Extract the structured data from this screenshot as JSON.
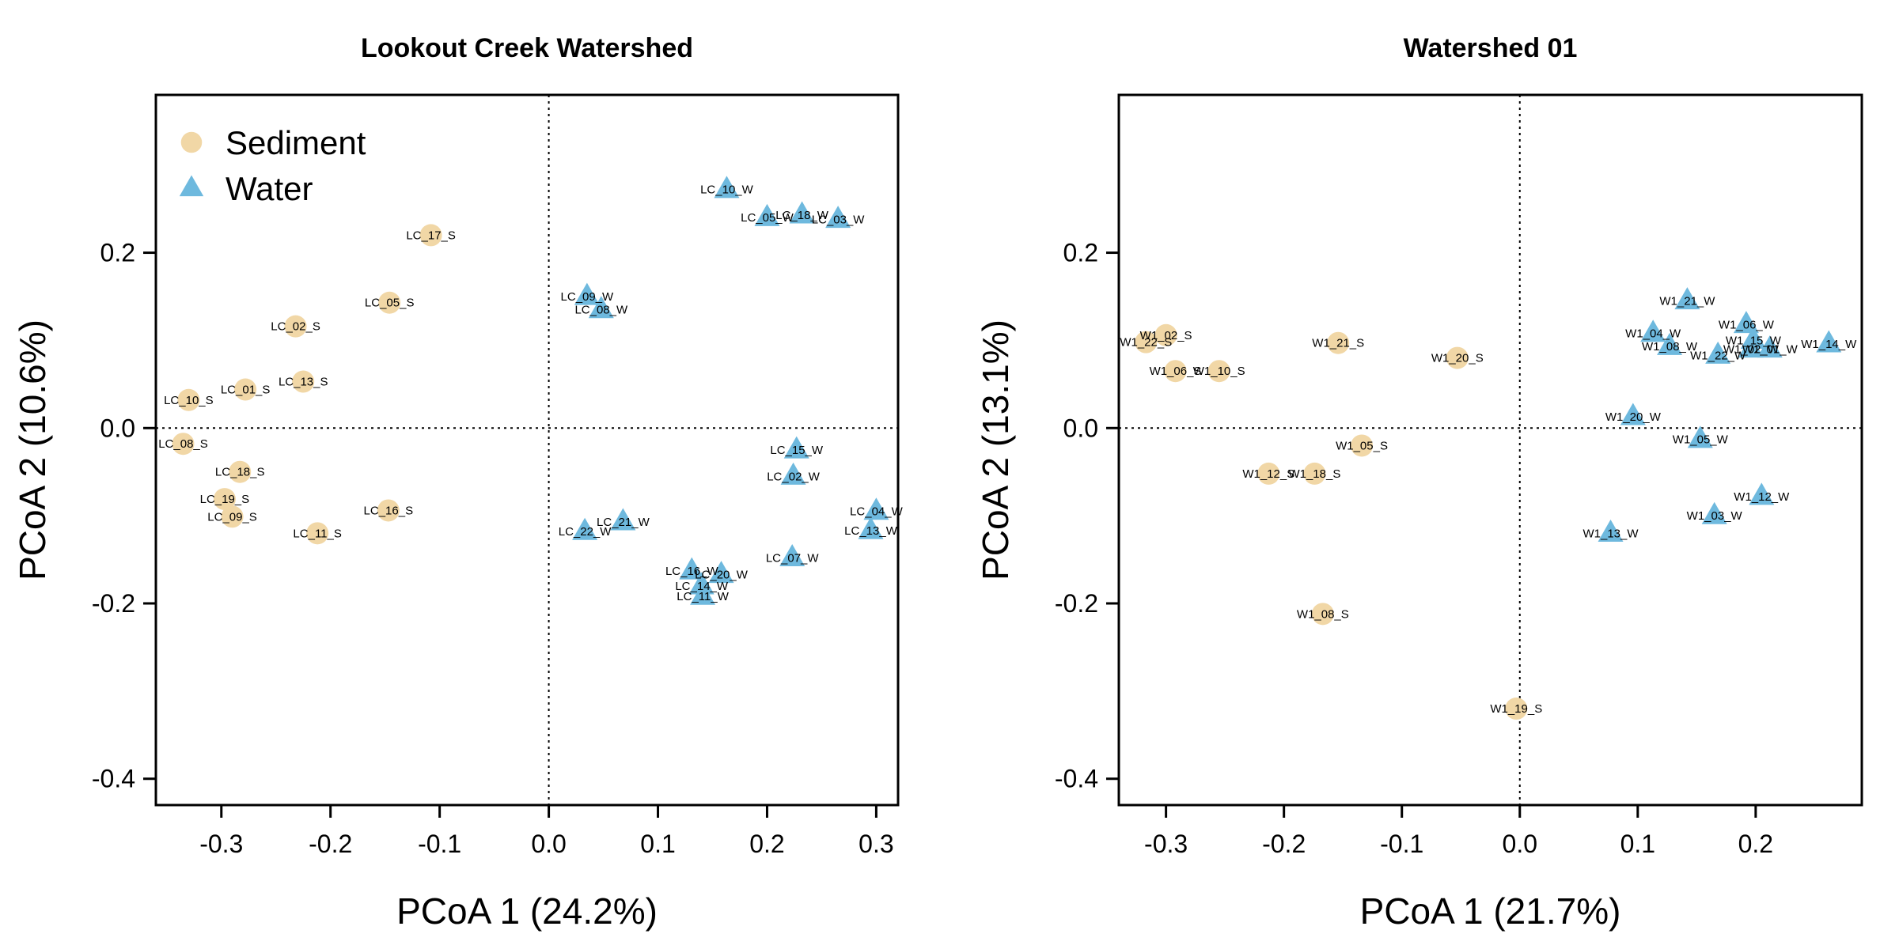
{
  "colors": {
    "sediment": "#F1D7A6",
    "water": "#6EB9DE"
  },
  "legend": {
    "position": "top-left",
    "panel": 0
  },
  "chart_data": [
    {
      "type": "scatter",
      "title": "Lookout Creek Watershed",
      "xlabel": "PCoA 1 (24.2%)",
      "ylabel": "PCoA 2 (10.6%)",
      "xlim": [
        -0.36,
        0.32
      ],
      "ylim": [
        -0.43,
        0.38
      ],
      "xticks": [
        "-0.3",
        "-0.2",
        "-0.1",
        "0.0",
        "0.1",
        "0.2",
        "0.3"
      ],
      "yticks": [
        "-0.4",
        "-0.2",
        "0.0",
        "0.2"
      ],
      "series": [
        {
          "name": "Sediment",
          "marker": "circle",
          "points": [
            {
              "label": "LC_17_S",
              "x": -0.108,
              "y": 0.22
            },
            {
              "label": "LC_05_S",
              "x": -0.146,
              "y": 0.143
            },
            {
              "label": "LC_02_S",
              "x": -0.232,
              "y": 0.116
            },
            {
              "label": "LC_13_S",
              "x": -0.225,
              "y": 0.053
            },
            {
              "label": "LC_01_S",
              "x": -0.278,
              "y": 0.044
            },
            {
              "label": "LC_10_S",
              "x": -0.33,
              "y": 0.032
            },
            {
              "label": "LC_08_S",
              "x": -0.335,
              "y": -0.018
            },
            {
              "label": "LC_18_S",
              "x": -0.283,
              "y": -0.05
            },
            {
              "label": "LC_16_S",
              "x": -0.147,
              "y": -0.094
            },
            {
              "label": "LC_19_S",
              "x": -0.297,
              "y": -0.081
            },
            {
              "label": "LC_09_S",
              "x": -0.29,
              "y": -0.101
            },
            {
              "label": "LC_11_S",
              "x": -0.212,
              "y": -0.12
            }
          ]
        },
        {
          "name": "Water",
          "marker": "triangle",
          "points": [
            {
              "label": "LC_10_W",
              "x": 0.163,
              "y": 0.272
            },
            {
              "label": "LC_05_W",
              "x": 0.2,
              "y": 0.24
            },
            {
              "label": "LC_18_W",
              "x": 0.232,
              "y": 0.243
            },
            {
              "label": "LC_03_W",
              "x": 0.265,
              "y": 0.238
            },
            {
              "label": "LC_09_W",
              "x": 0.035,
              "y": 0.15
            },
            {
              "label": "LC_08_W",
              "x": 0.048,
              "y": 0.135
            },
            {
              "label": "LC_15_W",
              "x": 0.227,
              "y": -0.025
            },
            {
              "label": "LC_02_W",
              "x": 0.224,
              "y": -0.055
            },
            {
              "label": "LC_04_W",
              "x": 0.3,
              "y": -0.095
            },
            {
              "label": "LC_13_W",
              "x": 0.295,
              "y": -0.117
            },
            {
              "label": "LC_21_W",
              "x": 0.068,
              "y": -0.107
            },
            {
              "label": "LC_22_W",
              "x": 0.033,
              "y": -0.118
            },
            {
              "label": "LC_07_W",
              "x": 0.223,
              "y": -0.148
            },
            {
              "label": "LC_16_W",
              "x": 0.131,
              "y": -0.163
            },
            {
              "label": "LC_20_W",
              "x": 0.158,
              "y": -0.167
            },
            {
              "label": "LC_14_W",
              "x": 0.14,
              "y": -0.18
            },
            {
              "label": "LC_11_W",
              "x": 0.141,
              "y": -0.192
            }
          ]
        }
      ]
    },
    {
      "type": "scatter",
      "title": "Watershed 01",
      "xlabel": "PCoA 1 (21.7%)",
      "ylabel": "PCoA 2 (13.1%)",
      "xlim": [
        -0.34,
        0.29
      ],
      "ylim": [
        -0.43,
        0.38
      ],
      "xticks": [
        "-0.3",
        "-0.2",
        "-0.1",
        "0.0",
        "0.1",
        "0.2"
      ],
      "yticks": [
        "-0.4",
        "-0.2",
        "0.0",
        "0.2"
      ],
      "series": [
        {
          "name": "Sediment",
          "marker": "circle",
          "points": [
            {
              "label": "W1_02_S",
              "x": -0.3,
              "y": 0.106
            },
            {
              "label": "W1_22_S",
              "x": -0.317,
              "y": 0.098
            },
            {
              "label": "W1_21_S",
              "x": -0.154,
              "y": 0.097
            },
            {
              "label": "W1_20_S",
              "x": -0.053,
              "y": 0.08
            },
            {
              "label": "W1_06_S",
              "x": -0.292,
              "y": 0.065
            },
            {
              "label": "W1_10_S",
              "x": -0.255,
              "y": 0.065
            },
            {
              "label": "W1_05_S",
              "x": -0.134,
              "y": -0.02
            },
            {
              "label": "W1_12_S",
              "x": -0.213,
              "y": -0.052
            },
            {
              "label": "W1_18_S",
              "x": -0.174,
              "y": -0.052
            },
            {
              "label": "W1_08_S",
              "x": -0.167,
              "y": -0.212
            },
            {
              "label": "W1_19_S",
              "x": -0.003,
              "y": -0.32
            }
          ]
        },
        {
          "name": "Water",
          "marker": "triangle",
          "points": [
            {
              "label": "W1_21_W",
              "x": 0.142,
              "y": 0.145
            },
            {
              "label": "W1_06_W",
              "x": 0.192,
              "y": 0.118
            },
            {
              "label": "W1_04_W",
              "x": 0.113,
              "y": 0.108
            },
            {
              "label": "W1_15_W",
              "x": 0.198,
              "y": 0.1
            },
            {
              "label": "W1_14_W",
              "x": 0.262,
              "y": 0.096
            },
            {
              "label": "W1_08_W",
              "x": 0.127,
              "y": 0.093
            },
            {
              "label": "W1_02_W",
              "x": 0.196,
              "y": 0.09
            },
            {
              "label": "W1_01_W",
              "x": 0.212,
              "y": 0.09
            },
            {
              "label": "W1_22_W",
              "x": 0.168,
              "y": 0.083
            },
            {
              "label": "W1_20_W",
              "x": 0.096,
              "y": 0.013
            },
            {
              "label": "W1_05_W",
              "x": 0.153,
              "y": -0.013
            },
            {
              "label": "W1_12_W",
              "x": 0.205,
              "y": -0.078
            },
            {
              "label": "W1_03_W",
              "x": 0.165,
              "y": -0.1
            },
            {
              "label": "W1_13_W",
              "x": 0.077,
              "y": -0.12
            }
          ]
        }
      ]
    }
  ]
}
